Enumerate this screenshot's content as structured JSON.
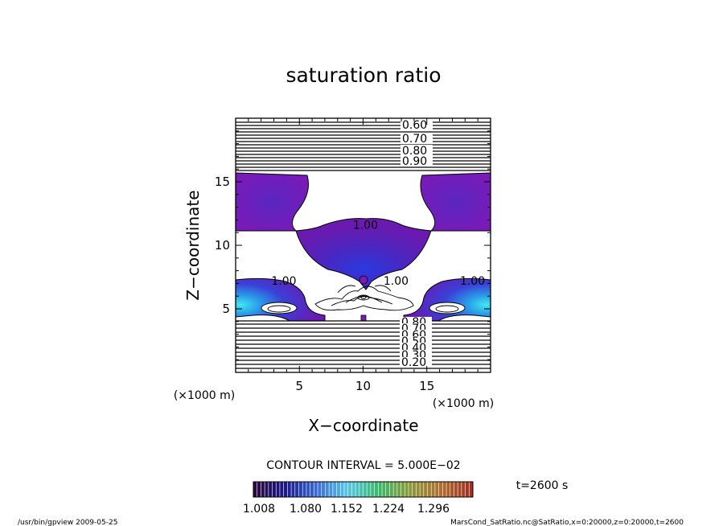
{
  "chart_data": {
    "type": "contour",
    "title": "saturation ratio",
    "xlabel": "X−coordinate",
    "ylabel": "Z−coordinate",
    "x_units": "(×1000 m)",
    "y_units": "(×1000 m)",
    "x_ticks": [
      "5",
      "10",
      "15"
    ],
    "y_ticks": [
      "5",
      "10",
      "15"
    ],
    "xlim": [
      0,
      20
    ],
    "ylim": [
      0,
      20
    ],
    "contour_interval_text": "CONTOUR INTERVAL = 5.000E−02",
    "upper_contour_labels": [
      "0.60",
      "0.70",
      "0.80",
      "0.90"
    ],
    "lower_contour_labels": [
      "0.80",
      "0.70",
      "0.60",
      "0.50",
      "0.40",
      "0.30",
      "0.20"
    ],
    "unity_contour_label": "1.00",
    "unity_label_positions": [
      [
        9.2,
        11.3
      ],
      [
        2.8,
        6.9
      ],
      [
        11.6,
        6.9
      ],
      [
        17.6,
        6.9
      ]
    ],
    "colorbar": {
      "ticks": [
        "1.008",
        "1.080",
        "1.152",
        "1.224",
        "1.296"
      ],
      "colors": [
        "#2a0a3e",
        "#1a1a8c",
        "#3a6ad8",
        "#56c8e8",
        "#3ab86a",
        "#8a9a3a",
        "#b07030",
        "#a03020"
      ]
    },
    "time_label": "t=2600 s",
    "footer_left": "/usr/bin/gpview   2009-05-25",
    "footer_right": "MarsCond_SatRatio.nc@SatRatio,x=0:20000,z=0:20000,t=2600"
  }
}
